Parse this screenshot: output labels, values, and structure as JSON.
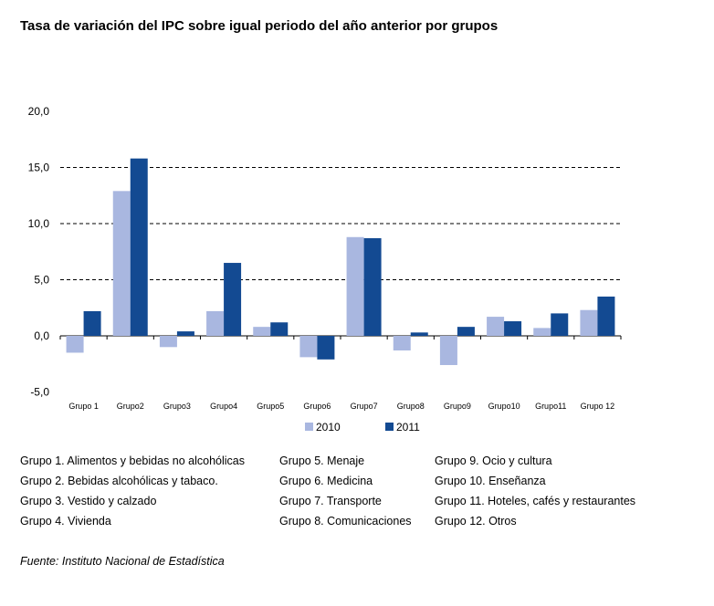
{
  "chart_data": {
    "type": "bar",
    "title": "Tasa de variación del IPC sobre igual periodo del año anterior por grupos",
    "categories": [
      "Grupo 1",
      "Grupo2",
      "Grupo3",
      "Grupo4",
      "Grupo5",
      "Grupo6",
      "Grupo7",
      "Grupo8",
      "Grupo9",
      "Grupo10",
      "Grupo11",
      "Grupo 12"
    ],
    "series": [
      {
        "name": "2010",
        "color": "#a9b7e0",
        "values": [
          -1.5,
          12.9,
          -1.0,
          2.2,
          0.8,
          -1.9,
          8.8,
          -1.3,
          -2.6,
          1.7,
          0.7,
          2.3
        ]
      },
      {
        "name": "2011",
        "color": "#134a92",
        "values": [
          2.2,
          15.8,
          0.4,
          6.5,
          1.2,
          -2.1,
          8.7,
          0.3,
          0.8,
          1.3,
          2.0,
          3.5
        ]
      }
    ],
    "ylim": [
      -5,
      20
    ],
    "yticks": [
      "20,0",
      "15,0",
      "10,0",
      "5,0",
      "0,0",
      "-5,0"
    ],
    "ytick_values": [
      20,
      15,
      10,
      5,
      0,
      -5
    ],
    "grid": "dashed horizontal",
    "legend_position": "bottom"
  },
  "notes": [
    "Grupo 1. Alimentos y bebidas no alcohólicas",
    "Grupo 2. Bebidas alcohólicas y  tabaco.",
    "Grupo 3. Vestido y calzado",
    "Grupo 4. Vivienda",
    "Grupo 5. Menaje",
    "Grupo 6. Medicina",
    "Grupo 7. Transporte",
    "Grupo 8. Comunicaciones",
    "Grupo 9. Ocio y cultura",
    "Grupo 10. Enseñanza",
    "Grupo 11. Hoteles, cafés y restaurantes",
    "Grupo 12. Otros"
  ],
  "source": "Fuente: Instituto Nacional de Estadística"
}
